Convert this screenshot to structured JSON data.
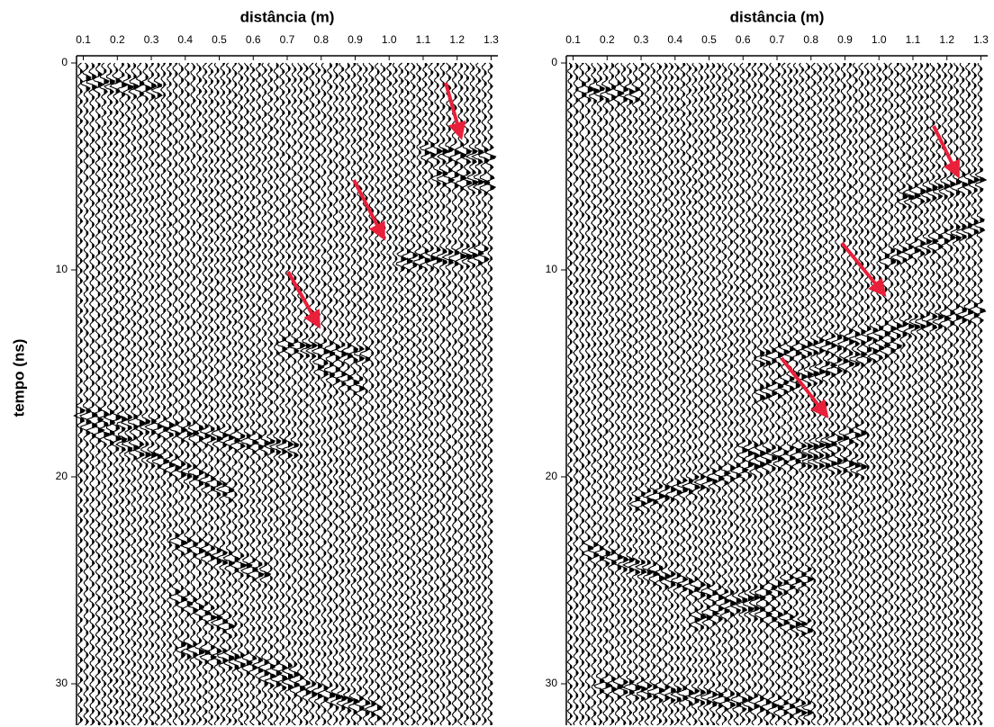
{
  "chart_data": [
    {
      "type": "radargram",
      "x_label": "distância (m)",
      "y_label": "tempo (ns)",
      "xlim": [
        0.08,
        1.32
      ],
      "ylim": [
        0,
        32
      ],
      "xticks": [
        0.1,
        0.2,
        0.3,
        0.4,
        0.5,
        0.6,
        0.7,
        0.8,
        0.9,
        {
          "value": 1,
          "label": "1.0"
        },
        1.1,
        1.2,
        1.3
      ],
      "yticks": [
        0,
        10,
        20,
        30
      ]
    },
    {
      "type": "radargram",
      "x_label": "distância (m)",
      "xlim": [
        0.08,
        1.32
      ],
      "ylim": [
        0,
        32
      ],
      "xticks": [
        0.1,
        0.2,
        0.3,
        0.4,
        0.5,
        0.6,
        0.7,
        0.8,
        0.9,
        {
          "value": 1,
          "label": "1.0"
        },
        1.1,
        1.2,
        1.3
      ],
      "yticks": [
        0,
        10,
        20,
        30
      ]
    }
  ]
}
